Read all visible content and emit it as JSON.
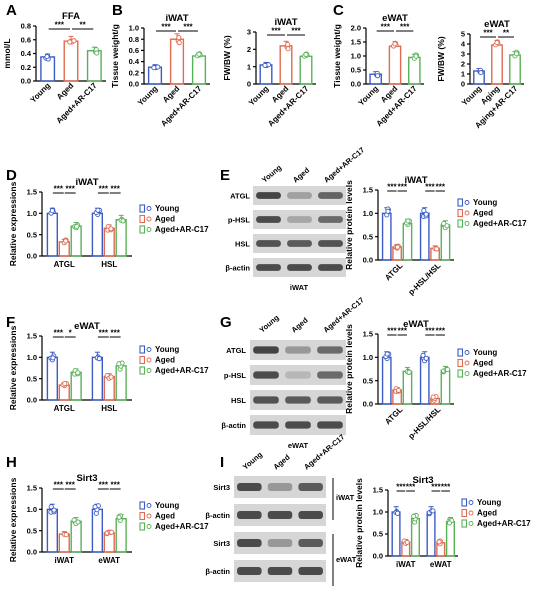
{
  "figure": {
    "panel_letters": [
      "A",
      "B",
      "C",
      "D",
      "E",
      "F",
      "G",
      "H",
      "I"
    ],
    "colors": {
      "young": "#3b5cc4",
      "aged": "#e06a52",
      "arc17": "#58b157",
      "gel_bg": "#d6d6d6",
      "band": "#3c3c3c"
    },
    "legend": [
      "Young",
      "Aged",
      "Aged+AR-C17"
    ]
  },
  "chart_data": [
    {
      "id": "A",
      "type": "bar",
      "title": "FFA",
      "ylabel": "mmol/L",
      "ylim": [
        0,
        0.8
      ],
      "yticks": [
        "0.0",
        "0.2",
        "0.4",
        "0.6",
        "0.8"
      ],
      "categories": [
        "Young",
        "Aged",
        "Aged+AR-C17"
      ],
      "values": [
        0.35,
        0.58,
        0.44
      ],
      "significance": [
        "***",
        "**"
      ]
    },
    {
      "id": "B1",
      "type": "bar",
      "title": "iWAT",
      "ylabel": "Tissue weight/g",
      "ylim": [
        0,
        1.0
      ],
      "yticks": [
        "0.0",
        "0.2",
        "0.4",
        "0.6",
        "0.8",
        "1.0"
      ],
      "categories": [
        "Young",
        "Aged",
        "Aged+AR-C17"
      ],
      "values": [
        0.3,
        0.8,
        0.5
      ],
      "significance": [
        "***",
        "***"
      ]
    },
    {
      "id": "B2",
      "type": "bar",
      "title": "iWAT",
      "ylabel": "FW/BW (%)",
      "ylim": [
        0,
        3
      ],
      "yticks": [
        "0",
        "1",
        "2",
        "3"
      ],
      "categories": [
        "Young",
        "Aged",
        "Aged+AR-C17"
      ],
      "values": [
        1.1,
        2.2,
        1.6
      ],
      "significance": [
        "***",
        "***"
      ]
    },
    {
      "id": "C1",
      "type": "bar",
      "title": "eWAT",
      "ylabel": "Tissue weight/g",
      "ylim": [
        0,
        2.0
      ],
      "yticks": [
        "0.0",
        "0.5",
        "1.0",
        "1.5",
        "2.0"
      ],
      "categories": [
        "Young",
        "Aged",
        "Aged+AR-C17"
      ],
      "values": [
        0.35,
        1.35,
        0.95
      ],
      "significance": [
        "***",
        "***"
      ]
    },
    {
      "id": "C2",
      "type": "bar",
      "title": "eWAT",
      "ylabel": "FW/BW (%)",
      "ylim": [
        0,
        5
      ],
      "yticks": [
        "0",
        "1",
        "2",
        "3",
        "4",
        "5"
      ],
      "categories": [
        "Young",
        "Aging",
        "Aging+AR-C17"
      ],
      "values": [
        1.3,
        3.9,
        2.9
      ],
      "significance": [
        "***",
        "**"
      ]
    },
    {
      "id": "D",
      "type": "bar",
      "title": "iWAT",
      "ylabel": "Relative expressions",
      "ylim": [
        0,
        1.5
      ],
      "yticks": [
        "0.0",
        "0.5",
        "1.0",
        "1.5"
      ],
      "categories": [
        "ATGL",
        "HSL"
      ],
      "series": [
        {
          "name": "Young",
          "values": [
            1.0,
            1.0
          ]
        },
        {
          "name": "Aged",
          "values": [
            0.33,
            0.65
          ]
        },
        {
          "name": "Aged+AR-C17",
          "values": [
            0.7,
            0.85
          ]
        }
      ],
      "significance": [
        "***",
        "***",
        "***",
        "***"
      ]
    },
    {
      "id": "E",
      "type": "bar",
      "title": "iWAT",
      "ylabel": "Relative protein levels",
      "ylim": [
        0,
        1.5
      ],
      "yticks": [
        "0.0",
        "0.5",
        "1.0",
        "1.5"
      ],
      "categories": [
        "ATGL",
        "p-HSL/HSL"
      ],
      "series": [
        {
          "name": "Young",
          "values": [
            1.0,
            1.0
          ]
        },
        {
          "name": "Aged",
          "values": [
            0.28,
            0.25
          ]
        },
        {
          "name": "Aged+AR-C17",
          "values": [
            0.78,
            0.75
          ]
        }
      ],
      "significance": [
        "***",
        "***",
        "***",
        "***"
      ]
    },
    {
      "id": "F",
      "type": "bar",
      "title": "eWAT",
      "ylabel": "Relative expressions",
      "ylim": [
        0,
        1.5
      ],
      "yticks": [
        "0.0",
        "0.5",
        "1.0",
        "1.5"
      ],
      "categories": [
        "ATGL",
        "HSL"
      ],
      "series": [
        {
          "name": "Young",
          "values": [
            1.0,
            1.0
          ]
        },
        {
          "name": "Aged",
          "values": [
            0.35,
            0.55
          ]
        },
        {
          "name": "Aged+AR-C17",
          "values": [
            0.65,
            0.8
          ]
        }
      ],
      "significance": [
        "***",
        "*",
        "***",
        "***"
      ]
    },
    {
      "id": "G",
      "type": "bar",
      "title": "eWAT",
      "ylabel": "Relative protein levels",
      "ylim": [
        0,
        1.5
      ],
      "yticks": [
        "0.0",
        "0.5",
        "1.0",
        "1.5"
      ],
      "categories": [
        "ATGL",
        "p-HSL/HSL"
      ],
      "series": [
        {
          "name": "Young",
          "values": [
            1.0,
            1.0
          ]
        },
        {
          "name": "Aged",
          "values": [
            0.3,
            0.12
          ]
        },
        {
          "name": "Aged+AR-C17",
          "values": [
            0.7,
            0.72
          ]
        }
      ],
      "significance": [
        "***",
        "***",
        "***",
        "***"
      ]
    },
    {
      "id": "H",
      "type": "bar",
      "title": "Sirt3",
      "ylabel": "Relative expressions",
      "ylim": [
        0,
        1.5
      ],
      "yticks": [
        "0.0",
        "0.5",
        "1.0",
        "1.5"
      ],
      "categories": [
        "iWAT",
        "eWAT"
      ],
      "series": [
        {
          "name": "Young",
          "values": [
            1.0,
            1.0
          ]
        },
        {
          "name": "Aged",
          "values": [
            0.42,
            0.45
          ]
        },
        {
          "name": "Aged+AR-C17",
          "values": [
            0.72,
            0.78
          ]
        }
      ],
      "significance": [
        "***",
        "***",
        "***",
        "***"
      ]
    },
    {
      "id": "I",
      "type": "bar",
      "title": "Sirt3",
      "ylabel": "Relative protein levels",
      "ylim": [
        0,
        1.5
      ],
      "yticks": [
        "0.0",
        "0.5",
        "1.0",
        "1.5"
      ],
      "categories": [
        "iWAT",
        "eWAT"
      ],
      "series": [
        {
          "name": "Young",
          "values": [
            1.0,
            1.0
          ]
        },
        {
          "name": "Aged",
          "values": [
            0.32,
            0.3
          ]
        },
        {
          "name": "Aged+AR-C17",
          "values": [
            0.85,
            0.78
          ]
        }
      ],
      "significance": [
        "***",
        "***",
        "***",
        "***"
      ]
    }
  ],
  "blots": {
    "E": {
      "lanes": [
        "Young",
        "Aged",
        "Aged+AR-C17"
      ],
      "rows": [
        "ATGL",
        "p-HSL",
        "HSL",
        "β-actin"
      ],
      "tissue": "iWAT"
    },
    "G": {
      "lanes": [
        "Young",
        "Aged",
        "Aged+AR-C17"
      ],
      "rows": [
        "ATGL",
        "p-HSL",
        "HSL",
        "β-actin"
      ],
      "tissue": "eWAT"
    },
    "I": {
      "lanes": [
        "Young",
        "Aged",
        "Aged+AR-C17"
      ],
      "rows": [
        "Sirt3",
        "β-actin",
        "Sirt3",
        "β-actin"
      ],
      "tissues": [
        "iWAT",
        "eWAT"
      ]
    }
  }
}
